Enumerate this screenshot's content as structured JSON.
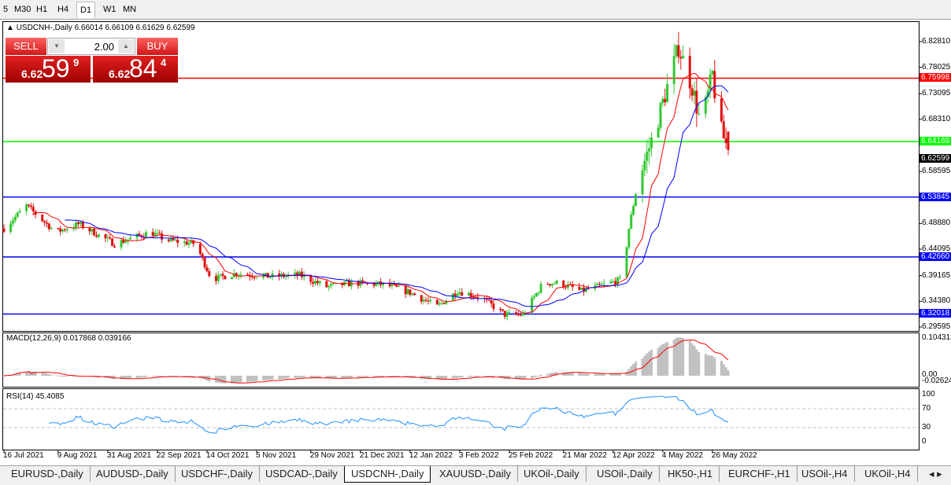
{
  "timeframes": [
    "5",
    "M30",
    "H1",
    "H4",
    "D1",
    "W1",
    "MN"
  ],
  "active_timeframe": "D1",
  "header": {
    "symbol": "USDCNH-,Daily",
    "ohlc": "6.66014 6.66109 6.61629 6.62599"
  },
  "trade": {
    "sell_label": "SELL",
    "buy_label": "BUY",
    "lot": "2.00",
    "sell_prefix": "6.62",
    "sell_big": "59",
    "sell_sup": "9",
    "buy_prefix": "6.62",
    "buy_big": "84",
    "buy_sup": "4"
  },
  "price_axis": [
    "6.82810",
    "6.78025",
    "6.73095",
    "6.68310",
    "6.58595",
    "6.48880",
    "6.44095",
    "6.39165",
    "6.34380",
    "6.29595"
  ],
  "levels": [
    {
      "value": "6.75998",
      "color": "#ff0000"
    },
    {
      "value": "6.64169",
      "color": "#00ff00"
    },
    {
      "value": "6.53845",
      "color": "#0000ff"
    },
    {
      "value": "6.42660",
      "color": "#0000ff"
    },
    {
      "value": "6.32018",
      "color": "#0000ff"
    }
  ],
  "current_price": "6.62599",
  "macd": {
    "label": "MACD(12,26,9) 0.017868 0.039166",
    "axis": [
      "0.104313",
      "0.00",
      "-0.026249"
    ]
  },
  "rsi": {
    "label": "RSI(14) 45.4085",
    "axis": [
      "100",
      "70",
      "30",
      "0"
    ]
  },
  "chart_data": {
    "type": "candlestick",
    "symbol": "USDCNH-",
    "timeframe": "Daily",
    "ylim": [
      6.29595,
      6.8281
    ],
    "x_ticks": [
      "16 Jul 2021",
      "9 Aug 2021",
      "31 Aug 2021",
      "22 Sep 2021",
      "14 Oct 2021",
      "5 Nov 2021",
      "29 Nov 2021",
      "21 Dec 2021",
      "12 Jan 2022",
      "3 Feb 2022",
      "25 Feb 2022",
      "21 Mar 2022",
      "12 Apr 2022",
      "4 May 2022",
      "26 May 2022"
    ],
    "approx_closes": [
      [
        "2021-07-16",
        6.48
      ],
      [
        "2021-07-26",
        6.522
      ],
      [
        "2021-08-08",
        6.473
      ],
      [
        "2021-08-18",
        6.488
      ],
      [
        "2021-09-03",
        6.451
      ],
      [
        "2021-09-19",
        6.473
      ],
      [
        "2021-09-26",
        6.458
      ],
      [
        "2021-10-09",
        6.451
      ],
      [
        "2021-10-16",
        6.385
      ],
      [
        "2021-10-27",
        6.396
      ],
      [
        "2021-11-10",
        6.39
      ],
      [
        "2021-11-24",
        6.393
      ],
      [
        "2021-12-06",
        6.371
      ],
      [
        "2021-12-18",
        6.378
      ],
      [
        "2022-01-01",
        6.375
      ],
      [
        "2022-01-12",
        6.36
      ],
      [
        "2022-01-24",
        6.334
      ],
      [
        "2022-02-02",
        6.363
      ],
      [
        "2022-02-12",
        6.352
      ],
      [
        "2022-02-23",
        6.319
      ],
      [
        "2022-03-03",
        6.319
      ],
      [
        "2022-03-12",
        6.378
      ],
      [
        "2022-03-19",
        6.378
      ],
      [
        "2022-03-29",
        6.363
      ],
      [
        "2022-04-05",
        6.371
      ],
      [
        "2022-04-16",
        6.385
      ],
      [
        "2022-04-19",
        6.48
      ],
      [
        "2022-04-23",
        6.568
      ],
      [
        "2022-04-30",
        6.656
      ],
      [
        "2022-05-07",
        6.759
      ],
      [
        "2022-05-11",
        6.818
      ],
      [
        "2022-05-17",
        6.744
      ],
      [
        "2022-05-21",
        6.671
      ],
      [
        "2022-05-26",
        6.767
      ],
      [
        "2022-05-29",
        6.671
      ],
      [
        "2022-06-02",
        6.626
      ]
    ],
    "last_bar": {
      "open": 6.66014,
      "high": 6.66109,
      "low": 6.61629,
      "close": 6.62599
    },
    "colors": {
      "up": "#32c832",
      "down": "#e01010",
      "ma_fast": "#ff0000",
      "ma_slow": "#0000ff",
      "macd_hist": "#c0c0c0",
      "macd_signal": "#ff0000",
      "rsi": "#1e90ff"
    }
  },
  "tabs": [
    "EURUSD-,Daily",
    "AUDUSD-,Daily",
    "USDCHF-,Daily",
    "USDCAD-,Daily",
    "USDCNH-,Daily",
    "XAUUSD-,Daily",
    "UKOil-,Daily",
    "USOil-,Daily",
    "HK50-,H1",
    "EURCHF-,H1",
    "USOil-,H4",
    "UKOil-,H4"
  ],
  "active_tab": "USDCNH-,Daily"
}
